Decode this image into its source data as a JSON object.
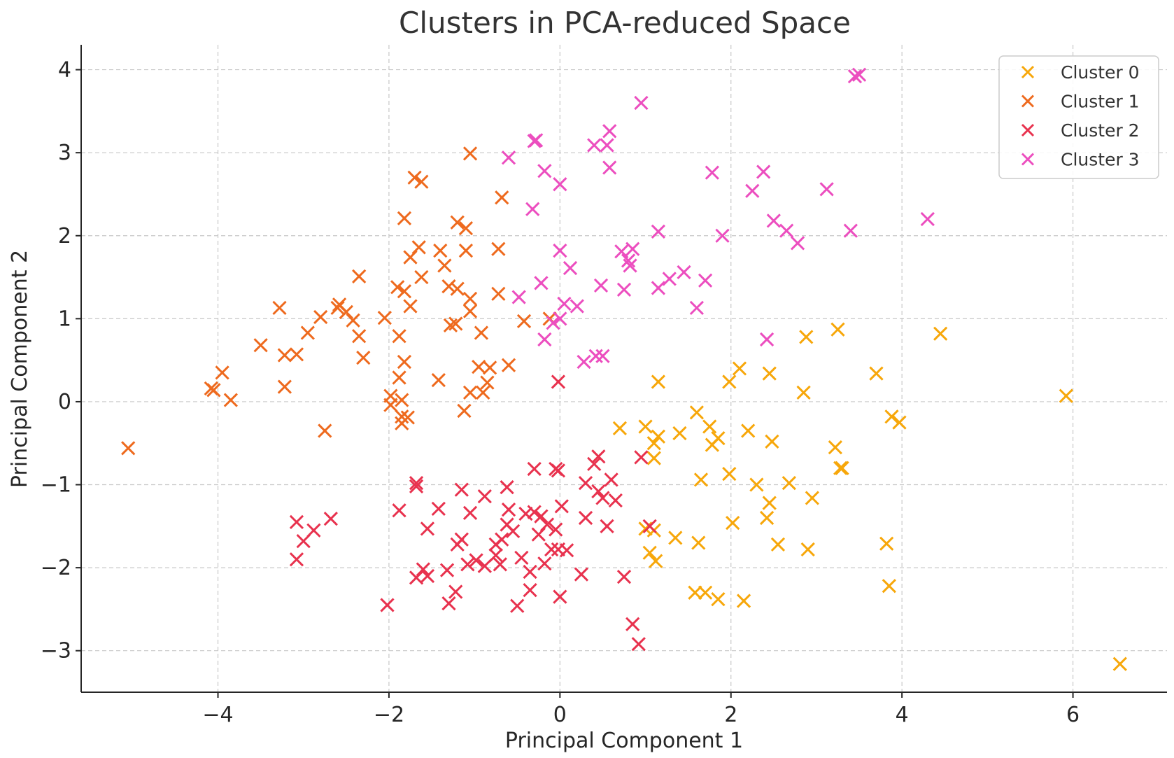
{
  "chart_data": {
    "type": "scatter",
    "title": "Clusters in PCA-reduced Space",
    "xlabel": "Principal Component 1",
    "ylabel": "Principal Component 2",
    "xlim": [
      -5.6,
      7.1
    ],
    "ylim": [
      -3.5,
      4.3
    ],
    "xticks": [
      -4,
      -2,
      0,
      2,
      4,
      6
    ],
    "yticks": [
      -3,
      -2,
      -1,
      0,
      1,
      2,
      3,
      4
    ],
    "xtick_labels": [
      "−4",
      "−2",
      "0",
      "2",
      "4",
      "6"
    ],
    "ytick_labels": [
      "−3",
      "−2",
      "−1",
      "0",
      "1",
      "2",
      "3",
      "4"
    ],
    "grid": true,
    "legend_position": "top-right",
    "marker": "x",
    "series": [
      {
        "name": "Cluster 0",
        "color": "#f7a70a",
        "points": [
          [
            0.7,
            -0.32
          ],
          [
            1.0,
            -0.3
          ],
          [
            1.1,
            -0.5
          ],
          [
            1.15,
            -0.42
          ],
          [
            1.1,
            -0.68
          ],
          [
            1.15,
            0.24
          ],
          [
            1.4,
            -0.38
          ],
          [
            1.6,
            -0.13
          ],
          [
            1.75,
            -0.3
          ],
          [
            1.78,
            -0.52
          ],
          [
            1.85,
            -0.44
          ],
          [
            1.65,
            -0.94
          ],
          [
            1.98,
            -0.87
          ],
          [
            2.1,
            0.4
          ],
          [
            1.98,
            0.24
          ],
          [
            2.2,
            -0.35
          ],
          [
            2.45,
            0.34
          ],
          [
            2.48,
            -0.48
          ],
          [
            2.3,
            -1.0
          ],
          [
            2.45,
            -1.22
          ],
          [
            2.42,
            -1.4
          ],
          [
            2.68,
            -0.98
          ],
          [
            2.55,
            -1.72
          ],
          [
            2.95,
            -1.16
          ],
          [
            2.9,
            -1.78
          ],
          [
            2.88,
            0.78
          ],
          [
            2.85,
            0.11
          ],
          [
            3.25,
            0.87
          ],
          [
            3.22,
            -0.55
          ],
          [
            3.28,
            -0.8
          ],
          [
            3.3,
            -0.8
          ],
          [
            3.7,
            0.34
          ],
          [
            3.88,
            -0.18
          ],
          [
            3.97,
            -0.25
          ],
          [
            3.82,
            -1.71
          ],
          [
            3.85,
            -2.22
          ],
          [
            4.45,
            0.82
          ],
          [
            5.92,
            0.07
          ],
          [
            6.55,
            -3.16
          ],
          [
            1.0,
            -1.53
          ],
          [
            1.1,
            -1.55
          ],
          [
            1.05,
            -1.82
          ],
          [
            1.12,
            -1.92
          ],
          [
            1.35,
            -1.64
          ],
          [
            1.62,
            -1.7
          ],
          [
            2.02,
            -1.46
          ],
          [
            1.58,
            -2.3
          ],
          [
            1.7,
            -2.3
          ],
          [
            1.85,
            -2.38
          ],
          [
            2.15,
            -2.4
          ]
        ]
      },
      {
        "name": "Cluster 1",
        "color": "#ee6a1e",
        "points": [
          [
            -5.05,
            -0.56
          ],
          [
            -4.08,
            0.16
          ],
          [
            -4.05,
            0.14
          ],
          [
            -3.95,
            0.35
          ],
          [
            -3.85,
            0.02
          ],
          [
            -3.5,
            0.68
          ],
          [
            -3.28,
            1.13
          ],
          [
            -3.22,
            0.56
          ],
          [
            -3.22,
            0.18
          ],
          [
            -3.08,
            0.57
          ],
          [
            -2.95,
            0.83
          ],
          [
            -2.8,
            1.02
          ],
          [
            -2.75,
            -0.35
          ],
          [
            -2.6,
            1.13
          ],
          [
            -2.58,
            1.17
          ],
          [
            -2.5,
            1.08
          ],
          [
            -2.42,
            0.98
          ],
          [
            -2.35,
            1.51
          ],
          [
            -2.35,
            0.79
          ],
          [
            -2.3,
            0.53
          ],
          [
            -2.05,
            1.01
          ],
          [
            -1.98,
            0.07
          ],
          [
            -1.98,
            -0.04
          ],
          [
            -1.9,
            1.38
          ],
          [
            -1.88,
            0.29
          ],
          [
            -1.88,
            0.79
          ],
          [
            -1.85,
            0.02
          ],
          [
            -1.85,
            -0.18
          ],
          [
            -1.85,
            -0.26
          ],
          [
            -1.82,
            0.48
          ],
          [
            -1.78,
            -0.19
          ],
          [
            -1.82,
            2.21
          ],
          [
            -1.82,
            1.33
          ],
          [
            -1.75,
            1.15
          ],
          [
            -1.75,
            1.74
          ],
          [
            -1.7,
            2.7
          ],
          [
            -1.62,
            2.65
          ],
          [
            -1.65,
            1.86
          ],
          [
            -1.62,
            1.5
          ],
          [
            -1.4,
            1.82
          ],
          [
            -1.42,
            0.26
          ],
          [
            -1.35,
            1.64
          ],
          [
            -1.3,
            1.39
          ],
          [
            -1.28,
            0.92
          ],
          [
            -1.2,
            1.36
          ],
          [
            -1.2,
            2.16
          ],
          [
            -1.1,
            2.09
          ],
          [
            -1.1,
            1.82
          ],
          [
            -1.05,
            1.24
          ],
          [
            -1.05,
            1.09
          ],
          [
            -1.05,
            0.11
          ],
          [
            -1.12,
            -0.11
          ],
          [
            -1.22,
            0.94
          ],
          [
            -1.05,
            2.99
          ],
          [
            -0.95,
            0.42
          ],
          [
            -0.92,
            0.83
          ],
          [
            -0.9,
            0.11
          ],
          [
            -0.85,
            0.23
          ],
          [
            -0.82,
            0.41
          ],
          [
            -0.72,
            1.3
          ],
          [
            -0.72,
            1.84
          ],
          [
            -0.68,
            2.46
          ],
          [
            -0.6,
            0.44
          ],
          [
            -0.42,
            0.97
          ],
          [
            -0.12,
            1.0
          ]
        ]
      },
      {
        "name": "Cluster 2",
        "color": "#e8324e",
        "points": [
          [
            -3.08,
            -1.45
          ],
          [
            -3.0,
            -1.68
          ],
          [
            -3.08,
            -1.9
          ],
          [
            -2.88,
            -1.55
          ],
          [
            -2.68,
            -1.41
          ],
          [
            -2.02,
            -2.45
          ],
          [
            -1.88,
            -1.31
          ],
          [
            -1.68,
            -0.98
          ],
          [
            -1.68,
            -1.02
          ],
          [
            -1.55,
            -1.53
          ],
          [
            -1.6,
            -2.02
          ],
          [
            -1.68,
            -2.12
          ],
          [
            -1.55,
            -2.1
          ],
          [
            -1.42,
            -1.29
          ],
          [
            -1.32,
            -2.03
          ],
          [
            -1.22,
            -2.29
          ],
          [
            -1.3,
            -2.43
          ],
          [
            -1.2,
            -1.72
          ],
          [
            -1.15,
            -1.06
          ],
          [
            -1.15,
            -1.66
          ],
          [
            -1.08,
            -1.96
          ],
          [
            -1.05,
            -1.34
          ],
          [
            -0.98,
            -1.91
          ],
          [
            -0.88,
            -1.14
          ],
          [
            -0.88,
            -1.98
          ],
          [
            -0.75,
            -1.72
          ],
          [
            -0.75,
            -1.85
          ],
          [
            -0.68,
            -1.66
          ],
          [
            -0.7,
            -1.96
          ],
          [
            -0.62,
            -1.03
          ],
          [
            -0.62,
            -1.48
          ],
          [
            -0.6,
            -1.3
          ],
          [
            -0.55,
            -1.56
          ],
          [
            -0.5,
            -2.46
          ],
          [
            -0.45,
            -1.88
          ],
          [
            -0.4,
            -1.35
          ],
          [
            -0.35,
            -2.05
          ],
          [
            -0.35,
            -2.27
          ],
          [
            -0.3,
            -0.81
          ],
          [
            -0.3,
            -1.33
          ],
          [
            -0.25,
            -1.6
          ],
          [
            -0.22,
            -1.38
          ],
          [
            -0.18,
            -1.95
          ],
          [
            -0.15,
            -1.48
          ],
          [
            -0.1,
            -1.78
          ],
          [
            -0.05,
            -0.81
          ],
          [
            -0.05,
            -1.54
          ],
          [
            -0.02,
            -0.83
          ],
          [
            -0.02,
            -1.78
          ],
          [
            0.0,
            -2.35
          ],
          [
            0.02,
            -1.26
          ],
          [
            0.08,
            -1.79
          ],
          [
            0.25,
            -2.08
          ],
          [
            0.3,
            -0.98
          ],
          [
            0.3,
            -1.4
          ],
          [
            0.4,
            -0.75
          ],
          [
            0.45,
            -0.66
          ],
          [
            0.45,
            -1.08
          ],
          [
            0.5,
            -1.16
          ],
          [
            0.55,
            -1.5
          ],
          [
            0.6,
            -0.94
          ],
          [
            0.65,
            -1.19
          ],
          [
            0.75,
            -2.11
          ],
          [
            0.85,
            -2.68
          ],
          [
            0.92,
            -2.92
          ],
          [
            0.95,
            -0.67
          ],
          [
            1.05,
            -1.5
          ],
          [
            -0.02,
            0.24
          ]
        ]
      },
      {
        "name": "Cluster 3",
        "color": "#ec4ebf",
        "points": [
          [
            -0.6,
            2.94
          ],
          [
            -0.48,
            1.26
          ],
          [
            -0.3,
            3.14
          ],
          [
            -0.28,
            3.15
          ],
          [
            -0.32,
            2.32
          ],
          [
            -0.22,
            1.43
          ],
          [
            -0.18,
            2.78
          ],
          [
            -0.18,
            0.75
          ],
          [
            -0.08,
            0.95
          ],
          [
            0.0,
            2.62
          ],
          [
            0.0,
            1.82
          ],
          [
            0.0,
            1.0
          ],
          [
            0.05,
            1.18
          ],
          [
            0.12,
            1.61
          ],
          [
            0.2,
            1.15
          ],
          [
            0.28,
            0.48
          ],
          [
            0.4,
            3.09
          ],
          [
            0.42,
            0.55
          ],
          [
            0.5,
            0.55
          ],
          [
            0.48,
            1.4
          ],
          [
            0.55,
            3.09
          ],
          [
            0.58,
            3.26
          ],
          [
            0.58,
            2.82
          ],
          [
            0.72,
            1.81
          ],
          [
            0.75,
            1.35
          ],
          [
            0.8,
            1.7
          ],
          [
            0.82,
            1.64
          ],
          [
            0.85,
            1.84
          ],
          [
            0.95,
            3.6
          ],
          [
            1.15,
            2.05
          ],
          [
            1.15,
            1.37
          ],
          [
            1.28,
            1.48
          ],
          [
            1.45,
            1.56
          ],
          [
            1.6,
            1.13
          ],
          [
            1.7,
            1.46
          ],
          [
            1.78,
            2.76
          ],
          [
            1.9,
            2.0
          ],
          [
            2.25,
            2.54
          ],
          [
            2.38,
            2.77
          ],
          [
            2.42,
            0.75
          ],
          [
            2.5,
            2.18
          ],
          [
            2.65,
            2.06
          ],
          [
            2.78,
            1.91
          ],
          [
            3.12,
            2.56
          ],
          [
            3.4,
            2.06
          ],
          [
            3.45,
            3.92
          ],
          [
            3.5,
            3.94
          ],
          [
            4.3,
            2.2
          ]
        ]
      }
    ]
  }
}
